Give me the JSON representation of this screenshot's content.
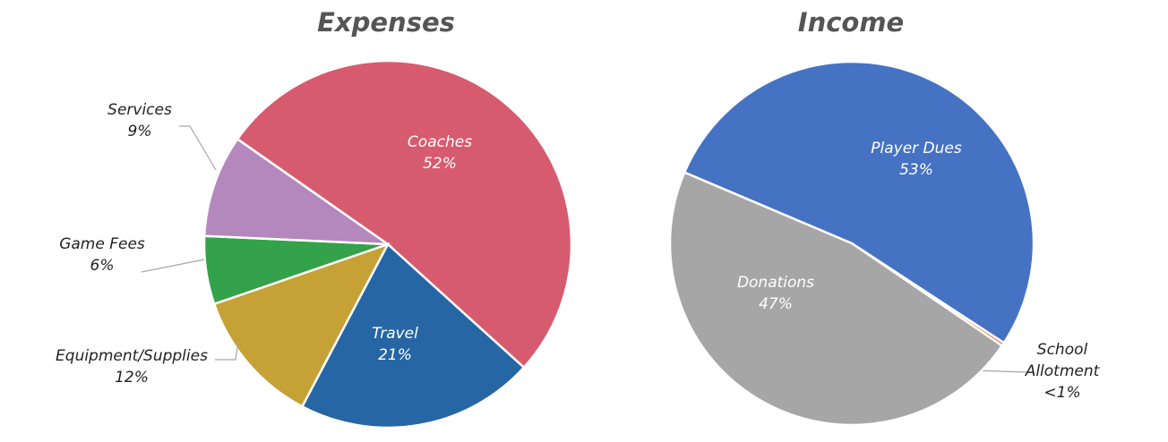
{
  "chart_data": [
    {
      "type": "pie",
      "title": "Expenses",
      "slices": [
        {
          "label": "Coaches",
          "value": 52,
          "display": "52%",
          "color": "#D75B6E"
        },
        {
          "label": "Travel",
          "value": 21,
          "display": "21%",
          "color": "#2766A5"
        },
        {
          "label": "Equipment/Supplies",
          "value": 12,
          "display": "12%",
          "color": "#C6A135"
        },
        {
          "label": "Game Fees",
          "value": 6,
          "display": "6%",
          "color": "#34A24A"
        },
        {
          "label": "Services",
          "value": 9,
          "display": "9%",
          "color": "#B488BD"
        }
      ]
    },
    {
      "type": "pie",
      "title": "Income",
      "slices": [
        {
          "label": "Player Dues",
          "value": 53,
          "display": "53%",
          "color": "#4672C4"
        },
        {
          "label": "School Allotment",
          "value": 0.3,
          "display": "<1%",
          "color": "#E2742F"
        },
        {
          "label": "Donations",
          "value": 47,
          "display": "47%",
          "color": "#A6A6A6"
        }
      ]
    }
  ]
}
